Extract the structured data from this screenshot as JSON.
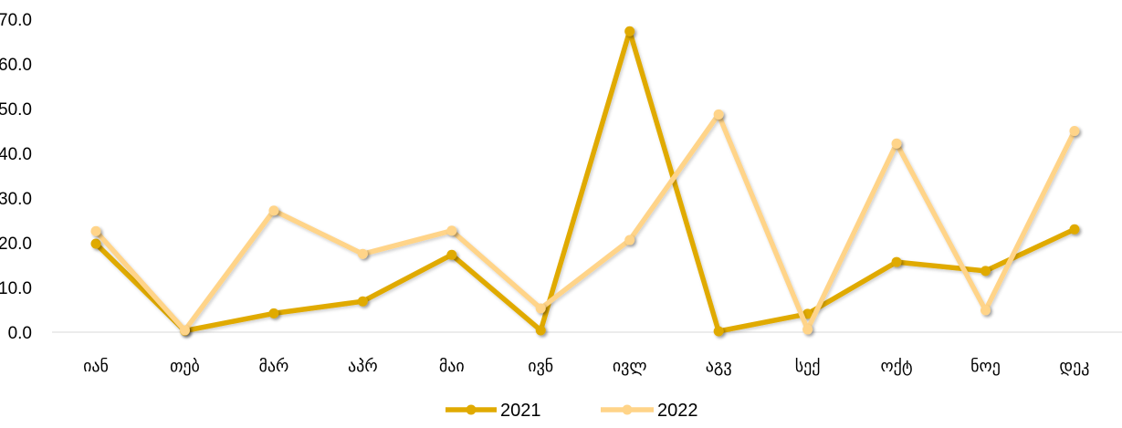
{
  "chart_data": {
    "type": "line",
    "categories": [
      "იან",
      "თებ",
      "მარ",
      "აპრ",
      "მაი",
      "ივნ",
      "ივლ",
      "აგვ",
      "სექ",
      "ოქტ",
      "ნოე",
      "დეკ"
    ],
    "y_tick_labels": [
      "0.0",
      "10.0",
      "20.0",
      "30.0",
      "40.0",
      "50.0",
      "60.0",
      "70.0"
    ],
    "ylim": [
      0,
      70
    ],
    "grid": false,
    "legend_position": "bottom",
    "series": [
      {
        "name": "2021",
        "color": "#E0AA00",
        "values": [
          19.8,
          0.3,
          4.2,
          6.9,
          17.3,
          0.4,
          67.3,
          0.2,
          4.1,
          15.7,
          13.7,
          23.0
        ]
      },
      {
        "name": "2022",
        "color": "#FFD489",
        "values": [
          22.6,
          0.4,
          27.2,
          17.5,
          22.7,
          5.3,
          20.6,
          48.7,
          0.6,
          42.2,
          4.9,
          45.0
        ]
      }
    ]
  }
}
